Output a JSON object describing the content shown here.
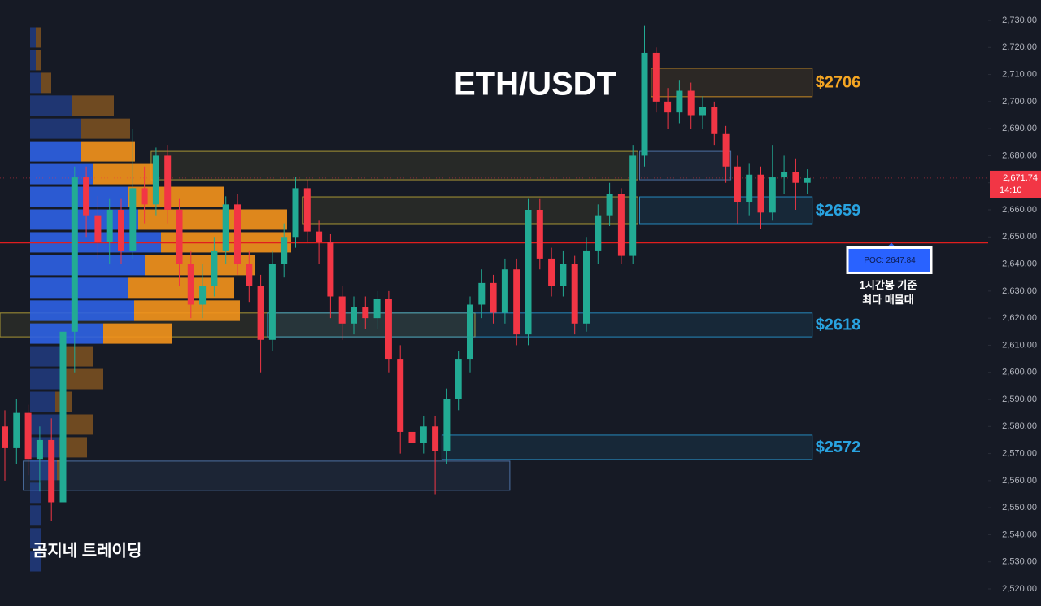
{
  "chart_data": {
    "type": "candlestick",
    "title": "ETH/USDT",
    "watermark": "곰지네 트레이딩",
    "ylim": [
      2520,
      2730
    ],
    "yticks": [
      {
        "value": 2520,
        "label": "2,520.00"
      },
      {
        "value": 2530,
        "label": "2,530.00"
      },
      {
        "value": 2540,
        "label": "2,540.00"
      },
      {
        "value": 2550,
        "label": "2,550.00"
      },
      {
        "value": 2560,
        "label": "2,560.00"
      },
      {
        "value": 2570,
        "label": "2,570.00"
      },
      {
        "value": 2580,
        "label": "2,580.00"
      },
      {
        "value": 2590,
        "label": "2,590.00"
      },
      {
        "value": 2600,
        "label": "2,600.00"
      },
      {
        "value": 2610,
        "label": "2,610.00"
      },
      {
        "value": 2620,
        "label": "2,620.00"
      },
      {
        "value": 2630,
        "label": "2,630.00"
      },
      {
        "value": 2640,
        "label": "2,640.00"
      },
      {
        "value": 2650,
        "label": "2,650.00"
      },
      {
        "value": 2660,
        "label": "2,660.00"
      },
      {
        "value": 2670,
        "label": "2,670.00"
      },
      {
        "value": 2680,
        "label": "2,680.00"
      },
      {
        "value": 2690,
        "label": "2,690.00"
      },
      {
        "value": 2700,
        "label": "2,700.00"
      },
      {
        "value": 2710,
        "label": "2,710.00"
      },
      {
        "value": 2720,
        "label": "2,720.00"
      },
      {
        "value": 2730,
        "label": "2,730.00"
      }
    ],
    "up_color": "#22ab94",
    "down_color": "#f23645",
    "candles": [
      [
        2580,
        2586,
        2560,
        2572
      ],
      [
        2572,
        2590,
        2566,
        2585
      ],
      [
        2585,
        2588,
        2562,
        2568
      ],
      [
        2568,
        2580,
        2556,
        2575
      ],
      [
        2575,
        2583,
        2545,
        2552
      ],
      [
        2552,
        2620,
        2540,
        2615
      ],
      [
        2615,
        2676,
        2600,
        2672
      ],
      [
        2672,
        2676,
        2650,
        2658
      ],
      [
        2658,
        2665,
        2642,
        2648
      ],
      [
        2648,
        2664,
        2640,
        2660
      ],
      [
        2660,
        2664,
        2640,
        2645
      ],
      [
        2645,
        2690,
        2642,
        2668
      ],
      [
        2668,
        2676,
        2655,
        2662
      ],
      [
        2662,
        2683,
        2658,
        2680
      ],
      [
        2680,
        2684,
        2655,
        2660
      ],
      [
        2660,
        2664,
        2632,
        2640
      ],
      [
        2640,
        2645,
        2620,
        2625
      ],
      [
        2625,
        2640,
        2620,
        2632
      ],
      [
        2632,
        2650,
        2628,
        2645
      ],
      [
        2645,
        2665,
        2640,
        2662
      ],
      [
        2662,
        2666,
        2636,
        2640
      ],
      [
        2640,
        2645,
        2626,
        2632
      ],
      [
        2632,
        2636,
        2600,
        2612
      ],
      [
        2612,
        2645,
        2608,
        2640
      ],
      [
        2640,
        2655,
        2635,
        2650
      ],
      [
        2650,
        2672,
        2646,
        2668
      ],
      [
        2668,
        2671,
        2648,
        2652
      ],
      [
        2652,
        2656,
        2640,
        2648
      ],
      [
        2648,
        2651,
        2620,
        2628
      ],
      [
        2628,
        2632,
        2612,
        2618
      ],
      [
        2618,
        2628,
        2614,
        2624
      ],
      [
        2624,
        2628,
        2616,
        2620
      ],
      [
        2620,
        2630,
        2616,
        2627
      ],
      [
        2627,
        2630,
        2600,
        2605
      ],
      [
        2605,
        2610,
        2570,
        2578
      ],
      [
        2578,
        2583,
        2568,
        2574
      ],
      [
        2574,
        2584,
        2570,
        2580
      ],
      [
        2580,
        2584,
        2555,
        2571
      ],
      [
        2571,
        2594,
        2566,
        2590
      ],
      [
        2590,
        2608,
        2586,
        2605
      ],
      [
        2605,
        2628,
        2600,
        2625
      ],
      [
        2625,
        2638,
        2620,
        2633
      ],
      [
        2633,
        2636,
        2618,
        2622
      ],
      [
        2622,
        2642,
        2618,
        2638
      ],
      [
        2638,
        2642,
        2610,
        2614
      ],
      [
        2614,
        2664,
        2610,
        2660
      ],
      [
        2660,
        2664,
        2638,
        2642
      ],
      [
        2642,
        2646,
        2628,
        2632
      ],
      [
        2632,
        2645,
        2628,
        2640
      ],
      [
        2640,
        2643,
        2614,
        2618
      ],
      [
        2618,
        2650,
        2615,
        2645
      ],
      [
        2645,
        2662,
        2640,
        2658
      ],
      [
        2658,
        2670,
        2654,
        2666
      ],
      [
        2666,
        2668,
        2640,
        2643
      ],
      [
        2643,
        2684,
        2640,
        2680
      ],
      [
        2680,
        2728,
        2676,
        2718
      ],
      [
        2718,
        2720,
        2696,
        2700
      ],
      [
        2700,
        2705,
        2690,
        2696
      ],
      [
        2696,
        2708,
        2692,
        2704
      ],
      [
        2704,
        2707,
        2690,
        2695
      ],
      [
        2695,
        2702,
        2690,
        2698
      ],
      [
        2698,
        2700,
        2684,
        2688
      ],
      [
        2688,
        2691,
        2670,
        2676
      ],
      [
        2676,
        2680,
        2655,
        2663
      ],
      [
        2663,
        2677,
        2658,
        2673
      ],
      [
        2673,
        2676,
        2653,
        2659
      ],
      [
        2659,
        2684,
        2656,
        2672
      ],
      [
        2672,
        2680,
        2666,
        2674
      ],
      [
        2674,
        2679,
        2660,
        2670
      ],
      [
        2670,
        2675,
        2666,
        2671.74
      ]
    ],
    "volume_profile": {
      "bins": [
        2727.9,
        2719.5,
        2711.1,
        2702.7,
        2694.2,
        2685.8,
        2677.4,
        2669.0,
        2660.6,
        2652.2,
        2643.8,
        2635.4,
        2627.0,
        2618.5,
        2610.1,
        2601.7,
        2593.3,
        2584.9,
        2576.5,
        2568.1,
        2559.7,
        2551.3,
        2542.9,
        2534.5,
        2526.0
      ],
      "buy": [
        7,
        7,
        13,
        51,
        63,
        63,
        77,
        121,
        133,
        161,
        141,
        121,
        128,
        90,
        41,
        43,
        31,
        41,
        35,
        33,
        13,
        13,
        13,
        13
      ],
      "sell": [
        6,
        6,
        13,
        52,
        60,
        66,
        76,
        117,
        183,
        160,
        135,
        130,
        130,
        84,
        36,
        47,
        20,
        36,
        35,
        5,
        0,
        0,
        0,
        0
      ],
      "buy_color": "#2e62e6",
      "sell_color": "#f4941c",
      "value_area_bins": [
        5,
        13
      ]
    },
    "zones": [
      {
        "low": 2701.8,
        "high": 2712.3,
        "start": 56,
        "end": 69,
        "color": "#f5a623",
        "label": "$2706"
      },
      {
        "low": 2671.1,
        "high": 2681.6,
        "start": 13,
        "end": 54,
        "color": "#c9b13a"
      },
      {
        "low": 2671.1,
        "high": 2681.6,
        "start": 55,
        "end": 62,
        "color": "#5a86c0"
      },
      {
        "low": 2654.9,
        "high": 2664.8,
        "start": 26,
        "end": 54,
        "color": "#c9b13a"
      },
      {
        "low": 2654.9,
        "high": 2664.8,
        "start": 55,
        "end": 69,
        "color": "#29a3e0",
        "label": "$2659"
      },
      {
        "low": 2613.1,
        "high": 2621.9,
        "start": 0,
        "end": 40,
        "color": "#c9b13a"
      },
      {
        "low": 2613.1,
        "high": 2621.9,
        "start": 23,
        "end": 69,
        "color": "#29a3e0",
        "label": "$2618"
      },
      {
        "low": 2567.8,
        "high": 2576.8,
        "start": 38,
        "end": 69,
        "color": "#29a3e0",
        "label": "$2572"
      },
      {
        "low": 2556.4,
        "high": 2567.2,
        "start": 2,
        "end": 43,
        "color": "#5a86c0"
      }
    ],
    "poc": {
      "value": 2647.84,
      "label": "POC: 2647.84",
      "color": "#e01e1e",
      "note": [
        "1시간봉 기준",
        "최다 매물대"
      ]
    },
    "last_price": {
      "value": 2671.74,
      "label": "2,671.74",
      "time": "14:10",
      "color": "#f23645"
    }
  }
}
